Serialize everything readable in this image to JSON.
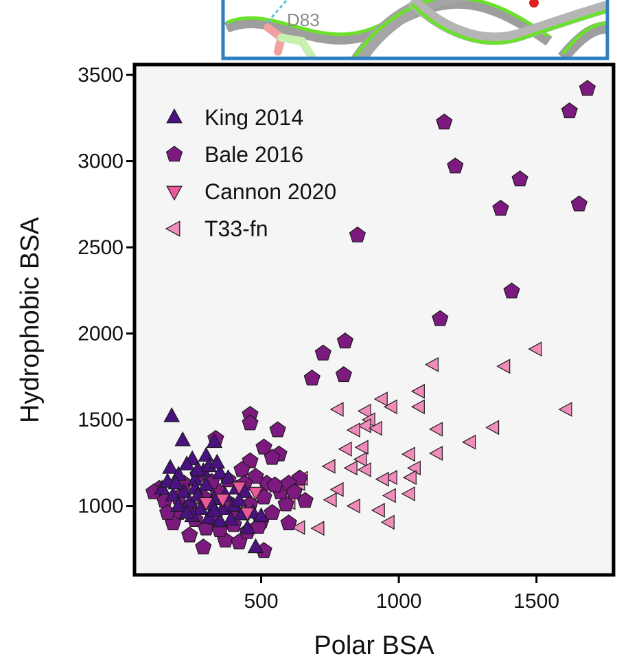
{
  "inset": {
    "residue_label": "D83"
  },
  "chart_data": {
    "type": "scatter",
    "xlabel": "Polar BSA",
    "ylabel": "Hydrophobic BSA",
    "xlim": [
      40,
      1780
    ],
    "ylim": [
      600,
      3560
    ],
    "xticks": [
      500,
      1000,
      1500
    ],
    "yticks": [
      1000,
      1500,
      2000,
      2500,
      3000,
      3500
    ],
    "grid": false,
    "legend_position": "top-left",
    "colors": {
      "King 2014": "#4a1280",
      "Bale 2016": "#7d1a80",
      "Cannon 2020": "#e8589a",
      "T33-fn": "#f08cba"
    },
    "series": [
      {
        "name": "King 2014",
        "marker": "triangle-up",
        "points": [
          [
            175,
            1520
          ],
          [
            215,
            1380
          ],
          [
            250,
            1270
          ],
          [
            300,
            1290
          ],
          [
            330,
            1370
          ],
          [
            170,
            1220
          ],
          [
            200,
            1180
          ],
          [
            260,
            1150
          ],
          [
            290,
            1200
          ],
          [
            310,
            1230
          ],
          [
            350,
            1190
          ],
          [
            380,
            1160
          ],
          [
            140,
            1100
          ],
          [
            180,
            1060
          ],
          [
            220,
            1080
          ],
          [
            260,
            1100
          ],
          [
            300,
            1120
          ],
          [
            330,
            1040
          ],
          [
            370,
            1060
          ],
          [
            410,
            1100
          ],
          [
            440,
            1080
          ],
          [
            200,
            1000
          ],
          [
            240,
            1020
          ],
          [
            280,
            980
          ],
          [
            320,
            1010
          ],
          [
            360,
            980
          ],
          [
            400,
            1000
          ],
          [
            430,
            950
          ],
          [
            470,
            960
          ],
          [
            500,
            940
          ],
          [
            250,
            940
          ],
          [
            310,
            930
          ],
          [
            350,
            910
          ],
          [
            390,
            920
          ],
          [
            450,
            870
          ],
          [
            480,
            760
          ],
          [
            160,
            1140
          ],
          [
            230,
            1240
          ],
          [
            270,
            1210
          ],
          [
            340,
            1250
          ],
          [
            190,
            1130
          ],
          [
            420,
            1030
          ],
          [
            270,
            1060
          ],
          [
            230,
            960
          ],
          [
            330,
            970
          ]
        ]
      },
      {
        "name": "Bale 2016",
        "marker": "pentagon",
        "points": [
          [
            1685,
            3420
          ],
          [
            1620,
            3290
          ],
          [
            1165,
            3225
          ],
          [
            1205,
            2970
          ],
          [
            1440,
            2895
          ],
          [
            1655,
            2750
          ],
          [
            1370,
            2725
          ],
          [
            850,
            2570
          ],
          [
            1410,
            2245
          ],
          [
            1150,
            2085
          ],
          [
            805,
            1955
          ],
          [
            725,
            1885
          ],
          [
            800,
            1760
          ],
          [
            685,
            1740
          ],
          [
            460,
            1530
          ],
          [
            460,
            1480
          ],
          [
            560,
            1440
          ],
          [
            335,
            1390
          ],
          [
            510,
            1340
          ],
          [
            565,
            1300
          ],
          [
            540,
            1280
          ],
          [
            460,
            1260
          ],
          [
            640,
            1160
          ],
          [
            660,
            1030
          ],
          [
            600,
            900
          ],
          [
            510,
            740
          ],
          [
            290,
            760
          ],
          [
            240,
            830
          ],
          [
            370,
            800
          ],
          [
            420,
            790
          ],
          [
            130,
            1100
          ],
          [
            110,
            1080
          ],
          [
            150,
            1030
          ],
          [
            200,
            960
          ],
          [
            180,
            900
          ],
          [
            260,
            920
          ],
          [
            300,
            870
          ],
          [
            350,
            860
          ],
          [
            400,
            890
          ],
          [
            450,
            850
          ],
          [
            500,
            910
          ],
          [
            540,
            960
          ],
          [
            590,
            1010
          ],
          [
            570,
            1080
          ],
          [
            520,
            1130
          ],
          [
            480,
            1170
          ],
          [
            430,
            1210
          ],
          [
            380,
            1150
          ],
          [
            340,
            1090
          ],
          [
            290,
            1050
          ],
          [
            240,
            1000
          ],
          [
            200,
            1050
          ],
          [
            220,
            1130
          ],
          [
            270,
            1180
          ],
          [
            320,
            1140
          ],
          [
            370,
            1030
          ],
          [
            410,
            960
          ],
          [
            460,
            1010
          ],
          [
            510,
            1050
          ],
          [
            550,
            1120
          ],
          [
            600,
            1130
          ],
          [
            490,
            880
          ],
          [
            330,
            930
          ],
          [
            160,
            960
          ],
          [
            620,
            1080
          ],
          [
            440,
            1130
          ]
        ]
      },
      {
        "name": "Cannon 2020",
        "marker": "triangle-down",
        "points": [
          [
            450,
            960
          ],
          [
            480,
            1080
          ],
          [
            300,
            1020
          ],
          [
            420,
            1110
          ],
          [
            360,
            1040
          ]
        ]
      },
      {
        "name": "T33-fn",
        "marker": "triangle-left",
        "points": [
          [
            1500,
            1910
          ],
          [
            1125,
            1820
          ],
          [
            1385,
            1810
          ],
          [
            940,
            1620
          ],
          [
            1075,
            1665
          ],
          [
            780,
            1560
          ],
          [
            880,
            1550
          ],
          [
            975,
            1575
          ],
          [
            1075,
            1575
          ],
          [
            1610,
            1560
          ],
          [
            895,
            1500
          ],
          [
            880,
            1465
          ],
          [
            920,
            1450
          ],
          [
            1140,
            1445
          ],
          [
            1345,
            1455
          ],
          [
            840,
            1440
          ],
          [
            870,
            1340
          ],
          [
            810,
            1330
          ],
          [
            1260,
            1370
          ],
          [
            1140,
            1305
          ],
          [
            1040,
            1300
          ],
          [
            865,
            1270
          ],
          [
            750,
            1230
          ],
          [
            830,
            1220
          ],
          [
            880,
            1210
          ],
          [
            1060,
            1220
          ],
          [
            975,
            1165
          ],
          [
            1045,
            1165
          ],
          [
            945,
            1155
          ],
          [
            650,
            1160
          ],
          [
            780,
            1095
          ],
          [
            755,
            1035
          ],
          [
            970,
            1060
          ],
          [
            1040,
            1070
          ],
          [
            840,
            1000
          ],
          [
            930,
            975
          ],
          [
            965,
            905
          ],
          [
            640,
            875
          ],
          [
            710,
            870
          ],
          [
            605,
            1020
          ],
          [
            590,
            1070
          ],
          [
            640,
            1130
          ]
        ]
      }
    ]
  }
}
